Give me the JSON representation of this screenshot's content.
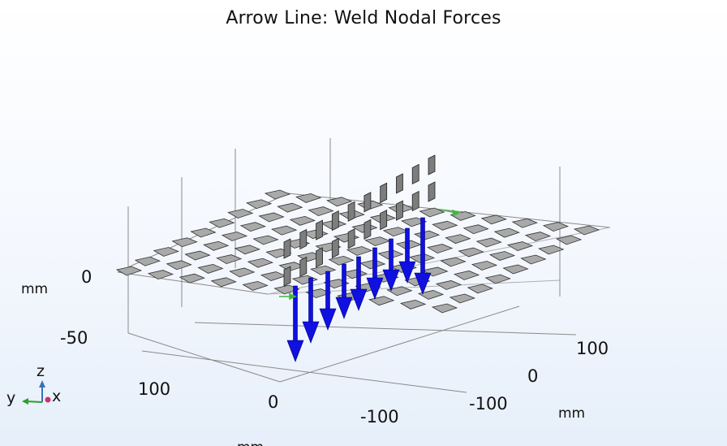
{
  "title": "Arrow Line: Weld Nodal Forces",
  "axes": {
    "z_unit": "mm",
    "x_unit": "mm",
    "y_unit": "mm",
    "z_ticks": [
      "0",
      "-50"
    ],
    "x_ticks": [
      "100",
      "0",
      "-100"
    ],
    "y_ticks": [
      "100",
      "0",
      "-100"
    ]
  },
  "triad": {
    "z": "z",
    "y": "y",
    "x": "x"
  },
  "colors": {
    "arrow": "#1010e0",
    "plate_top": "#a9a9a9",
    "plate_side": "#6e6e6e",
    "grid": "#888888",
    "triad_z": "#3a70b8",
    "triad_y": "#2aa02a",
    "triad_x": "#d0306a"
  }
}
